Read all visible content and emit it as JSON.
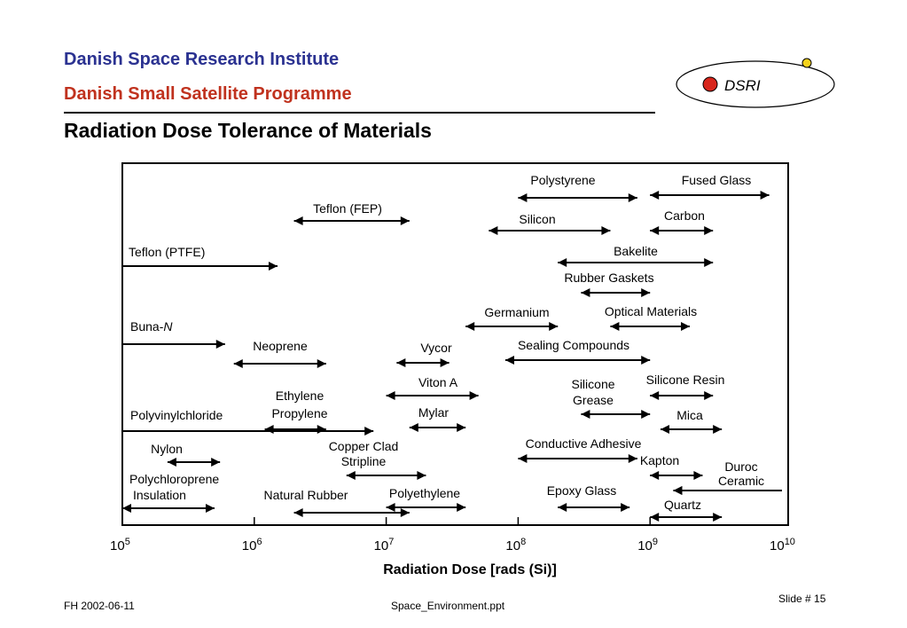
{
  "header": {
    "institute": "Danish Space Research Institute",
    "programme": "Danish Small Satellite Programme",
    "slide_title": "Radiation Dose Tolerance of Materials",
    "logo_text": "DSRI"
  },
  "footer": {
    "left": "FH  2002-06-11",
    "center": "Space_Environment.ppt",
    "right": "Slide # 15"
  },
  "colors": {
    "institute_blue": "#2b3291",
    "programme_red": "#c0321e",
    "logo_red_dot": "#d8261c",
    "logo_yellow_dot": "#f5d21b"
  },
  "chart_data": {
    "type": "range",
    "title": "",
    "xlabel": "Radiation Dose [rads (Si)]",
    "x_scale": "log",
    "xlim": [
      100000,
      10000000000
    ],
    "x_ticks": [
      {
        "base": "10",
        "exp": "5"
      },
      {
        "base": "10",
        "exp": "6"
      },
      {
        "base": "10",
        "exp": "7"
      },
      {
        "base": "10",
        "exp": "8"
      },
      {
        "base": "10",
        "exp": "9"
      },
      {
        "base": "10",
        "exp": "10"
      }
    ],
    "grid": false,
    "legend": "none",
    "materials": [
      {
        "label": "Teflon (PTFE)",
        "from": 100000,
        "to": 1500000,
        "start_open": false,
        "end_arrow": true
      },
      {
        "label": "Teflon (FEP)",
        "from": 2000000,
        "to": 15000000,
        "start_open": true,
        "end_arrow": true
      },
      {
        "label": "Buna-N",
        "from": 100000,
        "to": 600000,
        "start_open": false,
        "end_arrow": true
      },
      {
        "label": "Neoprene",
        "from": 700000,
        "to": 3500000,
        "start_open": true,
        "end_arrow": true
      },
      {
        "label": "Polyvinylchloride",
        "from": 100000,
        "to": 8000000,
        "start_open": false,
        "end_arrow": true
      },
      {
        "label": "Ethylene Propylene",
        "from": 1200000,
        "to": 3500000,
        "start_open": true,
        "end_arrow": true
      },
      {
        "label": "Nylon",
        "from": 220000,
        "to": 550000,
        "start_open": true,
        "end_arrow": true
      },
      {
        "label": "Polychloroprene Insulation",
        "from": 100000,
        "to": 500000,
        "start_open": true,
        "end_arrow": true
      },
      {
        "label": "Natural Rubber",
        "from": 2000000,
        "to": 15000000,
        "start_open": true,
        "end_arrow": true
      },
      {
        "label": "Copper Clad Stripline",
        "from": 5000000,
        "to": 20000000,
        "start_open": true,
        "end_arrow": true
      },
      {
        "label": "Polyethylene",
        "from": 10000000,
        "to": 40000000,
        "start_open": true,
        "end_arrow": true
      },
      {
        "label": "Vycor",
        "from": 12000000,
        "to": 30000000,
        "start_open": true,
        "end_arrow": true
      },
      {
        "label": "Viton A",
        "from": 10000000,
        "to": 50000000,
        "start_open": true,
        "end_arrow": true
      },
      {
        "label": "Mylar",
        "from": 15000000,
        "to": 40000000,
        "start_open": true,
        "end_arrow": true
      },
      {
        "label": "Polystyrene",
        "from": 100000000,
        "to": 800000000,
        "start_open": true,
        "end_arrow": true
      },
      {
        "label": "Silicon",
        "from": 60000000,
        "to": 500000000,
        "start_open": true,
        "end_arrow": true
      },
      {
        "label": "Fused Glass",
        "from": 1000000000,
        "to": 8000000000,
        "start_open": true,
        "end_arrow": true
      },
      {
        "label": "Carbon",
        "from": 1000000000,
        "to": 3000000000,
        "start_open": true,
        "end_arrow": true
      },
      {
        "label": "Bakelite",
        "from": 200000000,
        "to": 3000000000,
        "start_open": true,
        "end_arrow": true
      },
      {
        "label": "Rubber Gaskets",
        "from": 300000000,
        "to": 1000000000,
        "start_open": true,
        "end_arrow": true
      },
      {
        "label": "Germanium",
        "from": 40000000,
        "to": 200000000,
        "start_open": true,
        "end_arrow": true
      },
      {
        "label": "Optical Materials",
        "from": 500000000,
        "to": 2000000000,
        "start_open": true,
        "end_arrow": true
      },
      {
        "label": "Sealing Compounds",
        "from": 80000000,
        "to": 1000000000,
        "start_open": true,
        "end_arrow": true
      },
      {
        "label": "Silicone Grease",
        "from": 300000000,
        "to": 1000000000,
        "start_open": true,
        "end_arrow": true
      },
      {
        "label": "Silicone Resin",
        "from": 1000000000,
        "to": 3000000000,
        "start_open": true,
        "end_arrow": true
      },
      {
        "label": "Mica",
        "from": 1200000000,
        "to": 3500000000,
        "start_open": true,
        "end_arrow": true
      },
      {
        "label": "Conductive Adhesive",
        "from": 100000000,
        "to": 800000000,
        "start_open": true,
        "end_arrow": true
      },
      {
        "label": "Kapton",
        "from": 1000000000,
        "to": 2500000000,
        "start_open": true,
        "end_arrow": true
      },
      {
        "label": "Duroc Ceramic",
        "from": 1500000000,
        "to": 10000000000,
        "start_open": true,
        "end_arrow": false
      },
      {
        "label": "Epoxy Glass",
        "from": 200000000,
        "to": 700000000,
        "start_open": true,
        "end_arrow": true
      },
      {
        "label": "Quartz",
        "from": 1000000000,
        "to": 3500000000,
        "start_open": true,
        "end_arrow": true
      }
    ]
  }
}
